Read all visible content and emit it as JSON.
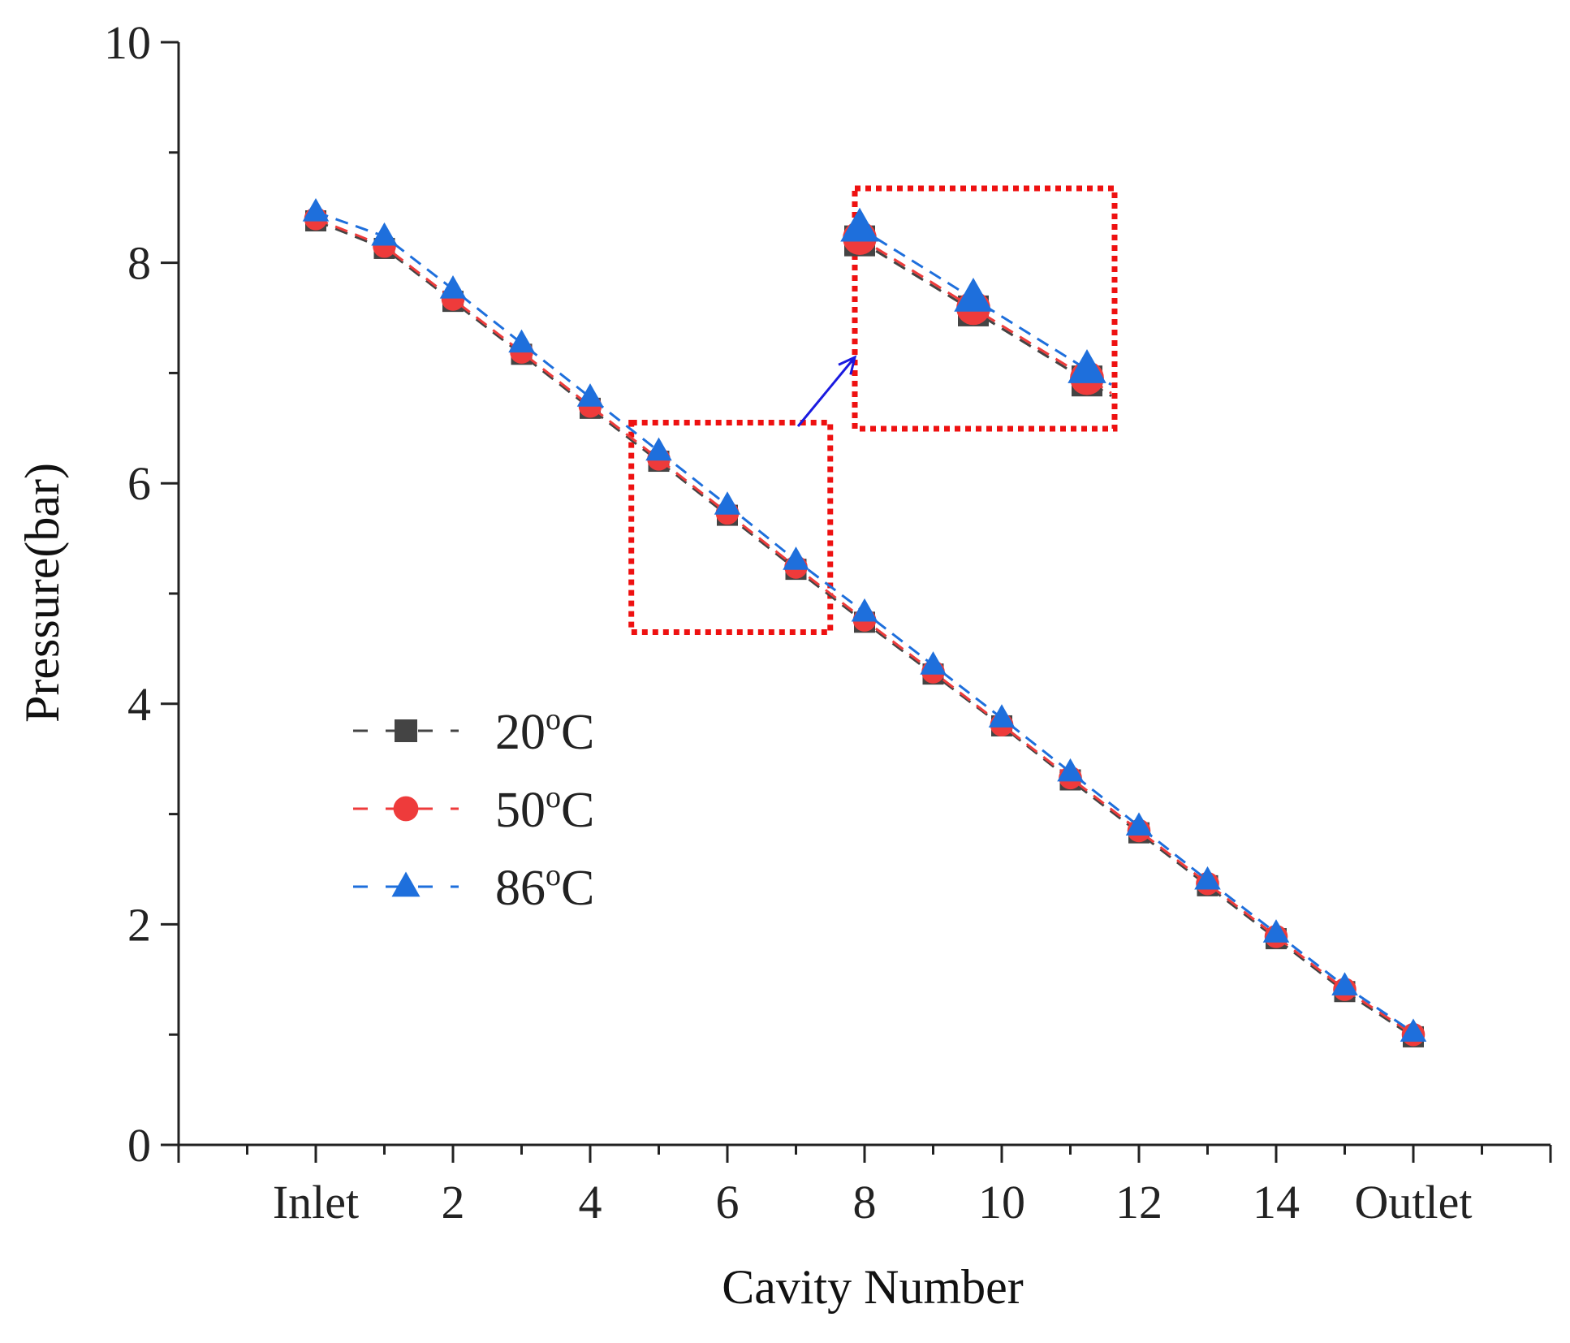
{
  "chart_data": {
    "type": "line",
    "xlabel": "Cavity Number",
    "ylabel": "Pressure(bar)",
    "xlim": [
      -2,
      18
    ],
    "ylim": [
      0,
      10
    ],
    "x_ticks": [
      {
        "x": 0,
        "label": "Inlet"
      },
      {
        "x": 2,
        "label": "2"
      },
      {
        "x": 4,
        "label": "4"
      },
      {
        "x": 6,
        "label": "6"
      },
      {
        "x": 8,
        "label": "8"
      },
      {
        "x": 10,
        "label": "10"
      },
      {
        "x": 12,
        "label": "12"
      },
      {
        "x": 14,
        "label": "14"
      },
      {
        "x": 16,
        "label": "Outlet"
      }
    ],
    "y_ticks": [
      {
        "y": 0,
        "label": "0"
      },
      {
        "y": 2,
        "label": "2"
      },
      {
        "y": 4,
        "label": "4"
      },
      {
        "y": 6,
        "label": "6"
      },
      {
        "y": 8,
        "label": "8"
      },
      {
        "y": 10,
        "label": "10"
      }
    ],
    "x": [
      0,
      1,
      2,
      3,
      4,
      5,
      6,
      7,
      8,
      9,
      10,
      11,
      12,
      13,
      14,
      15,
      16
    ],
    "series": [
      {
        "name": "20",
        "unit_sup": "o",
        "unit": "C",
        "color": "#444444",
        "marker": "square",
        "values": [
          8.38,
          8.13,
          7.65,
          7.17,
          6.68,
          6.2,
          5.71,
          5.22,
          4.74,
          4.27,
          3.8,
          3.31,
          2.83,
          2.35,
          1.87,
          1.39,
          0.98
        ]
      },
      {
        "name": "50",
        "unit_sup": "o",
        "unit": "C",
        "color": "#ee3b3b",
        "marker": "circle",
        "values": [
          8.4,
          8.15,
          7.67,
          7.19,
          6.7,
          6.22,
          5.73,
          5.24,
          4.76,
          4.29,
          3.81,
          3.33,
          2.85,
          2.37,
          1.89,
          1.41,
          1.0
        ]
      },
      {
        "name": "86",
        "unit_sup": "o",
        "unit": "C",
        "color": "#1e6fdc",
        "marker": "triangle",
        "values": [
          8.46,
          8.24,
          7.76,
          7.27,
          6.78,
          6.29,
          5.8,
          5.3,
          4.83,
          4.35,
          3.87,
          3.38,
          2.89,
          2.4,
          1.92,
          1.44,
          1.02
        ]
      }
    ],
    "highlight": {
      "x_range": [
        4.6,
        7.5
      ],
      "y_range": [
        4.65,
        6.55
      ],
      "color": "#ee1111"
    },
    "inset": {
      "x_range": [
        5,
        7
      ],
      "color": "#ee1111",
      "arrow_color": "#1a1ae0"
    },
    "legend": {
      "position": "left-middle"
    },
    "grid": false
  }
}
